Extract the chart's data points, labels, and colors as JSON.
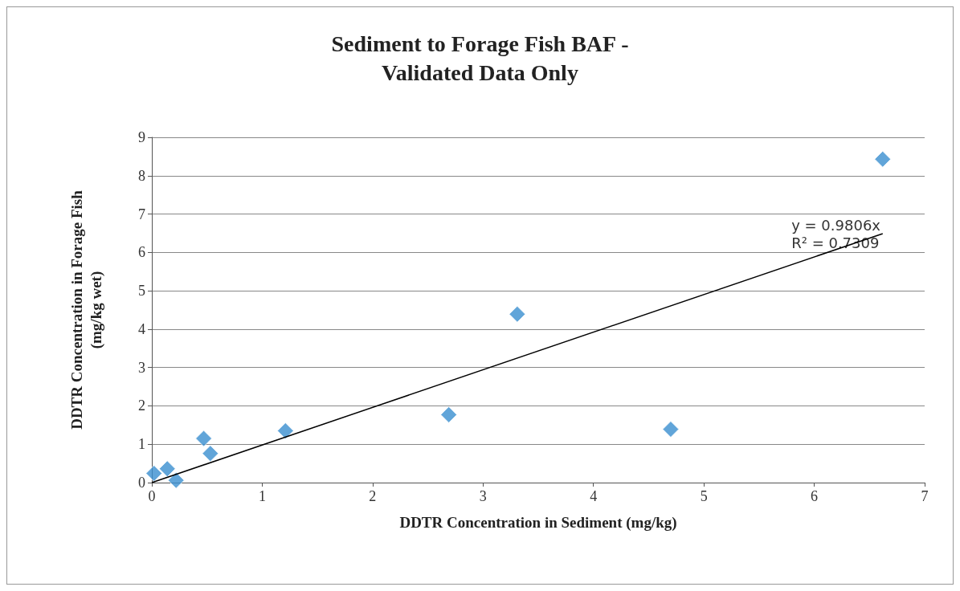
{
  "chart_data": {
    "type": "scatter",
    "title": "Sediment to Forage Fish BAF -\nValidated Data Only",
    "xlabel": "DDTR Concentration in Sediment (mg/kg)",
    "ylabel": "DDTR Concentration in Forage Fish\n(mg/kg wet)",
    "series": [
      {
        "color": "#3a8fd0",
        "marker": "diamond",
        "x": [
          0.02,
          0.14,
          0.22,
          0.47,
          0.53,
          1.21,
          2.69,
          3.31,
          4.7,
          6.62
        ],
        "values": [
          0.24,
          0.36,
          0.06,
          1.15,
          0.76,
          1.35,
          1.77,
          4.39,
          1.39,
          8.43
        ]
      },
      {
        "type": "line",
        "color": "#000000",
        "marker": "none",
        "x": [
          0,
          6.62
        ],
        "values": [
          0,
          6.49
        ]
      }
    ],
    "annotations": [
      "y = 0.9806x\nR² = 0.7309"
    ],
    "xlim": [
      0,
      7
    ],
    "xticks": [
      0,
      1,
      2,
      3,
      4,
      5,
      6,
      7
    ],
    "ylim": [
      0,
      9
    ],
    "yticks": [
      0,
      1,
      2,
      3,
      4,
      5,
      6,
      7,
      8,
      9
    ],
    "grid": "y"
  }
}
